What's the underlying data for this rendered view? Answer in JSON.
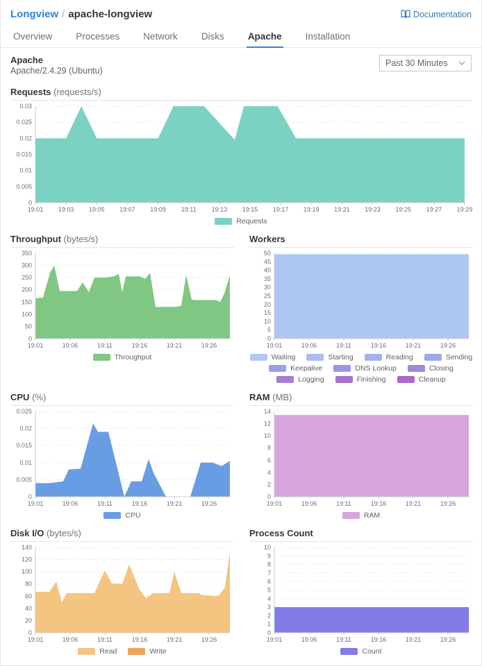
{
  "header": {
    "breadcrumb": {
      "parent": "Longview",
      "separator": "/",
      "current": "apache-longview"
    },
    "documentation_label": "Documentation"
  },
  "tabs": [
    {
      "label": "Overview",
      "active": false
    },
    {
      "label": "Processes",
      "active": false
    },
    {
      "label": "Network",
      "active": false
    },
    {
      "label": "Disks",
      "active": false
    },
    {
      "label": "Apache",
      "active": true
    },
    {
      "label": "Installation",
      "active": false
    }
  ],
  "subheader": {
    "title": "Apache",
    "version": "Apache/2.4.29 (Ubuntu)",
    "time_range": "Past 30 Minutes"
  },
  "colors": {
    "accent_blue": "#3683dc",
    "requests_teal": "#7bd2c3",
    "throughput_green": "#80c783",
    "workers_blue": "#adc6f4",
    "cpu_blue": "#689de4",
    "ram_plum": "#d7a4de",
    "disk_read_orange": "#f4c481",
    "disk_write_orange": "#efa557",
    "process_purple": "#837be8"
  },
  "icons": {
    "documentation": "open-book-icon",
    "time_range": "chevron-down-icon"
  },
  "chart_data": [
    {
      "id": "requests",
      "type": "area",
      "layout": "full",
      "title": "Requests",
      "unit": "(requests/s)",
      "ylim": [
        0,
        0.03
      ],
      "xlim": [
        1,
        29
      ],
      "yticks": [
        {
          "v": 0.03,
          "t": "0.03"
        },
        {
          "v": 0.025,
          "t": "0.025"
        },
        {
          "v": 0.02,
          "t": "0.02"
        },
        {
          "v": 0.015,
          "t": "0.015"
        },
        {
          "v": 0.01,
          "t": "0.01"
        },
        {
          "v": 0.005,
          "t": "0.005"
        },
        {
          "v": 0,
          "t": "0"
        }
      ],
      "xticks": [
        {
          "m": 1,
          "t": "19:01"
        },
        {
          "m": 3,
          "t": "19:03"
        },
        {
          "m": 5,
          "t": "19:05"
        },
        {
          "m": 7,
          "t": "19:07"
        },
        {
          "m": 9,
          "t": "19:09"
        },
        {
          "m": 11,
          "t": "19:11"
        },
        {
          "m": 13,
          "t": "19:13"
        },
        {
          "m": 15,
          "t": "19:15"
        },
        {
          "m": 17,
          "t": "19:17"
        },
        {
          "m": 19,
          "t": "19:19"
        },
        {
          "m": 21,
          "t": "19:21"
        },
        {
          "m": 23,
          "t": "19:23"
        },
        {
          "m": 25,
          "t": "19:25"
        },
        {
          "m": 27,
          "t": "19:27"
        },
        {
          "m": 29,
          "t": "19:29"
        }
      ],
      "series": [
        {
          "name": "Requests",
          "color": "#7bd2c3",
          "x": [
            1,
            3,
            4,
            5,
            9,
            10,
            12,
            14,
            14.6,
            16.8,
            18,
            29
          ],
          "y": [
            0.02,
            0.02,
            0.03,
            0.02,
            0.02,
            0.03,
            0.03,
            0.0195,
            0.03,
            0.03,
            0.02,
            0.02
          ]
        }
      ],
      "legend": [
        {
          "label": "Requests",
          "color": "#7bd2c3"
        }
      ]
    },
    {
      "id": "throughput",
      "type": "area",
      "layout": "half",
      "title": "Throughput",
      "unit": "(bytes/s)",
      "ylim": [
        0,
        350
      ],
      "xlim": [
        1,
        29
      ],
      "yticks": [
        {
          "v": 350,
          "t": "350"
        },
        {
          "v": 300,
          "t": "300"
        },
        {
          "v": 250,
          "t": "250"
        },
        {
          "v": 200,
          "t": "200"
        },
        {
          "v": 150,
          "t": "150"
        },
        {
          "v": 100,
          "t": "100"
        },
        {
          "v": 50,
          "t": "50"
        },
        {
          "v": 0,
          "t": "0"
        }
      ],
      "xticks": [
        {
          "m": 1,
          "t": "19:01"
        },
        {
          "m": 6,
          "t": "19:06"
        },
        {
          "m": 11,
          "t": "19:11"
        },
        {
          "m": 16,
          "t": "19:16"
        },
        {
          "m": 21,
          "t": "19:21"
        },
        {
          "m": 26,
          "t": "19:26"
        }
      ],
      "series": [
        {
          "name": "Throughput",
          "color": "#80c783",
          "x": [
            1,
            2.1,
            3.1,
            3.7,
            4.5,
            7,
            7.8,
            8.7,
            9.5,
            11,
            12.3,
            13,
            13.5,
            14,
            16,
            16.8,
            17.5,
            18.3,
            21.3,
            22,
            22.7,
            23.5,
            24,
            27,
            27.6,
            28.2,
            29
          ],
          "y": [
            165,
            168,
            270,
            300,
            195,
            195,
            230,
            190,
            250,
            250,
            255,
            265,
            190,
            255,
            255,
            245,
            270,
            130,
            130,
            135,
            260,
            160,
            158,
            158,
            150,
            185,
            260
          ]
        }
      ],
      "legend": [
        {
          "label": "Throughput",
          "color": "#80c783"
        }
      ]
    },
    {
      "id": "workers",
      "type": "area",
      "layout": "half",
      "title": "Workers",
      "unit": "",
      "ylim": [
        0,
        50
      ],
      "xlim": [
        1,
        29
      ],
      "yticks": [
        {
          "v": 50,
          "t": "50"
        },
        {
          "v": 45,
          "t": "45"
        },
        {
          "v": 40,
          "t": "40"
        },
        {
          "v": 35,
          "t": "35"
        },
        {
          "v": 30,
          "t": "30"
        },
        {
          "v": 25,
          "t": "25"
        },
        {
          "v": 20,
          "t": "20"
        },
        {
          "v": 15,
          "t": "15"
        },
        {
          "v": 10,
          "t": "10"
        },
        {
          "v": 5,
          "t": "5"
        },
        {
          "v": 0,
          "t": "0"
        }
      ],
      "xticks": [
        {
          "m": 1,
          "t": "19:01"
        },
        {
          "m": 6,
          "t": "19:06"
        },
        {
          "m": 11,
          "t": "19:11"
        },
        {
          "m": 16,
          "t": "19:16"
        },
        {
          "m": 21,
          "t": "19:21"
        },
        {
          "m": 26,
          "t": "19:26"
        }
      ],
      "series": [
        {
          "name": "Waiting",
          "color": "#adc6f4",
          "x": [
            1,
            29
          ],
          "y": [
            49.4,
            49.4
          ]
        }
      ],
      "legend": [
        {
          "label": "Waiting",
          "color": "#b1c9f5"
        },
        {
          "label": "Starting",
          "color": "#a9bef1"
        },
        {
          "label": "Reading",
          "color": "#a3b3ed"
        },
        {
          "label": "Sending",
          "color": "#9ea9e9"
        },
        {
          "label": "Keepalive",
          "color": "#9aa0e4"
        },
        {
          "label": "DNS Lookup",
          "color": "#9c94de"
        },
        {
          "label": "Closing",
          "color": "#a089d9"
        },
        {
          "label": "Logging",
          "color": "#a47ed4"
        },
        {
          "label": "Finishing",
          "color": "#a773ce"
        },
        {
          "label": "Cleanup",
          "color": "#ab68c9"
        }
      ]
    },
    {
      "id": "cpu",
      "type": "area",
      "layout": "half",
      "title": "CPU",
      "unit": "(%)",
      "ylim": [
        0,
        0.025
      ],
      "xlim": [
        1,
        29
      ],
      "yticks": [
        {
          "v": 0.025,
          "t": "0.025"
        },
        {
          "v": 0.02,
          "t": "0.02"
        },
        {
          "v": 0.015,
          "t": "0.015"
        },
        {
          "v": 0.01,
          "t": "0.01"
        },
        {
          "v": 0.005,
          "t": "0.005"
        },
        {
          "v": 0,
          "t": "0"
        }
      ],
      "xticks": [
        {
          "m": 1,
          "t": "19:01"
        },
        {
          "m": 6,
          "t": "19:06"
        },
        {
          "m": 11,
          "t": "19:11"
        },
        {
          "m": 16,
          "t": "19:16"
        },
        {
          "m": 21,
          "t": "19:21"
        },
        {
          "m": 26,
          "t": "19:26"
        }
      ],
      "series": [
        {
          "name": "CPU",
          "color": "#689de4",
          "x": [
            1,
            3,
            5,
            5.8,
            7.5,
            9.3,
            10,
            11.5,
            13.8,
            14.8,
            16.3,
            17.3,
            18,
            19.8,
            23.3,
            24.8,
            26.5,
            27.8,
            29
          ],
          "y": [
            0.004,
            0.004,
            0.0045,
            0.008,
            0.0082,
            0.0215,
            0.019,
            0.019,
            0,
            0.0045,
            0.0045,
            0.011,
            0.007,
            0,
            0,
            0.01,
            0.01,
            0.009,
            0.0105
          ]
        }
      ],
      "legend": [
        {
          "label": "CPU",
          "color": "#689de4"
        }
      ]
    },
    {
      "id": "ram",
      "type": "area",
      "layout": "half",
      "title": "RAM",
      "unit": "(MB)",
      "ylim": [
        0,
        14
      ],
      "xlim": [
        1,
        29
      ],
      "yticks": [
        {
          "v": 14,
          "t": "14"
        },
        {
          "v": 12,
          "t": "12"
        },
        {
          "v": 10,
          "t": "10"
        },
        {
          "v": 8,
          "t": "8"
        },
        {
          "v": 6,
          "t": "6"
        },
        {
          "v": 4,
          "t": "4"
        },
        {
          "v": 2,
          "t": "2"
        },
        {
          "v": 0,
          "t": "0"
        }
      ],
      "xticks": [
        {
          "m": 1,
          "t": "19:01"
        },
        {
          "m": 6,
          "t": "19:06"
        },
        {
          "m": 11,
          "t": "19:11"
        },
        {
          "m": 16,
          "t": "19:16"
        },
        {
          "m": 21,
          "t": "19:21"
        },
        {
          "m": 26,
          "t": "19:26"
        }
      ],
      "series": [
        {
          "name": "RAM",
          "color": "#d7a4de",
          "x": [
            1,
            29
          ],
          "y": [
            13.4,
            13.4
          ]
        }
      ],
      "legend": [
        {
          "label": "RAM",
          "color": "#d7a4de"
        }
      ]
    },
    {
      "id": "diskio",
      "type": "area",
      "layout": "half",
      "title": "Disk I/O",
      "unit": "(bytes/s)",
      "ylim": [
        0,
        140
      ],
      "xlim": [
        1,
        29
      ],
      "yticks": [
        {
          "v": 140,
          "t": "140"
        },
        {
          "v": 120,
          "t": "120"
        },
        {
          "v": 100,
          "t": "100"
        },
        {
          "v": 80,
          "t": "80"
        },
        {
          "v": 60,
          "t": "60"
        },
        {
          "v": 40,
          "t": "40"
        },
        {
          "v": 20,
          "t": "20"
        },
        {
          "v": 0,
          "t": "0"
        }
      ],
      "xticks": [
        {
          "m": 1,
          "t": "19:01"
        },
        {
          "m": 6,
          "t": "19:06"
        },
        {
          "m": 11,
          "t": "19:11"
        },
        {
          "m": 16,
          "t": "19:16"
        },
        {
          "m": 21,
          "t": "19:21"
        },
        {
          "m": 26,
          "t": "19:26"
        }
      ],
      "series": [
        {
          "name": "Read",
          "color": "#f4c481",
          "x": [
            1,
            3,
            4,
            4.8,
            5.5,
            9.5,
            11,
            12,
            13.5,
            14.5,
            16,
            16.9,
            18,
            20.3,
            21,
            22,
            24.5,
            25,
            27,
            27.5,
            28.3,
            29
          ],
          "y": [
            67,
            67,
            84,
            50,
            65,
            65,
            102,
            81,
            80,
            112,
            70,
            57,
            65,
            65,
            100,
            65,
            65,
            62,
            60,
            62,
            75,
            132
          ]
        }
      ],
      "legend": [
        {
          "label": "Read",
          "color": "#f4c481"
        },
        {
          "label": "Write",
          "color": "#efa557"
        }
      ]
    },
    {
      "id": "processcount",
      "type": "area",
      "layout": "half",
      "title": "Process Count",
      "unit": "",
      "ylim": [
        0,
        10
      ],
      "xlim": [
        1,
        29
      ],
      "yticks": [
        {
          "v": 10,
          "t": "10"
        },
        {
          "v": 9,
          "t": "9"
        },
        {
          "v": 8,
          "t": "8"
        },
        {
          "v": 7,
          "t": "7"
        },
        {
          "v": 6,
          "t": "6"
        },
        {
          "v": 5,
          "t": "5"
        },
        {
          "v": 4,
          "t": "4"
        },
        {
          "v": 3,
          "t": "3"
        },
        {
          "v": 2,
          "t": "2"
        },
        {
          "v": 1,
          "t": "1"
        },
        {
          "v": 0,
          "t": "0"
        }
      ],
      "xticks": [
        {
          "m": 1,
          "t": "19:01"
        },
        {
          "m": 6,
          "t": "19:06"
        },
        {
          "m": 11,
          "t": "19:11"
        },
        {
          "m": 16,
          "t": "19:16"
        },
        {
          "m": 21,
          "t": "19:21"
        },
        {
          "m": 26,
          "t": "19:26"
        }
      ],
      "series": [
        {
          "name": "Count",
          "color": "#837be8",
          "x": [
            1,
            29
          ],
          "y": [
            3,
            3
          ]
        }
      ],
      "legend": [
        {
          "label": "Count",
          "color": "#837be8"
        }
      ]
    }
  ]
}
